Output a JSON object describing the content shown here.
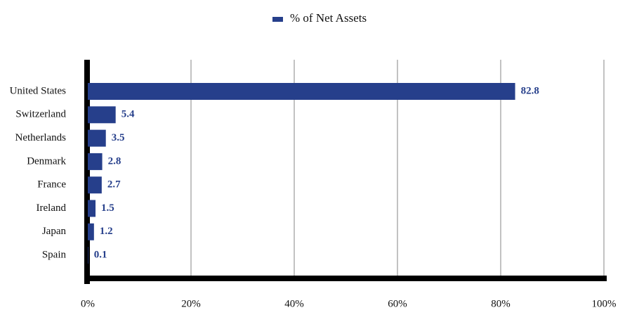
{
  "chart_data": {
    "type": "hbar",
    "series": [
      {
        "name": "% of Net Assets",
        "color": "#263f8b",
        "values": [
          82.8,
          5.4,
          3.5,
          2.8,
          2.7,
          1.5,
          1.2,
          0.1
        ]
      }
    ],
    "categories": [
      "United States",
      "Switzerland",
      "Netherlands",
      "Denmark",
      "France",
      "Ireland",
      "Japan",
      "Spain"
    ],
    "xlim": [
      0,
      100
    ],
    "xticks": [
      {
        "value": 0,
        "label": "0%"
      },
      {
        "value": 20,
        "label": "20%"
      },
      {
        "value": 40,
        "label": "40%"
      },
      {
        "value": 60,
        "label": "60%"
      },
      {
        "value": 80,
        "label": "80%"
      },
      {
        "value": 100,
        "label": "100%"
      }
    ],
    "grid": true,
    "legend": "top"
  }
}
